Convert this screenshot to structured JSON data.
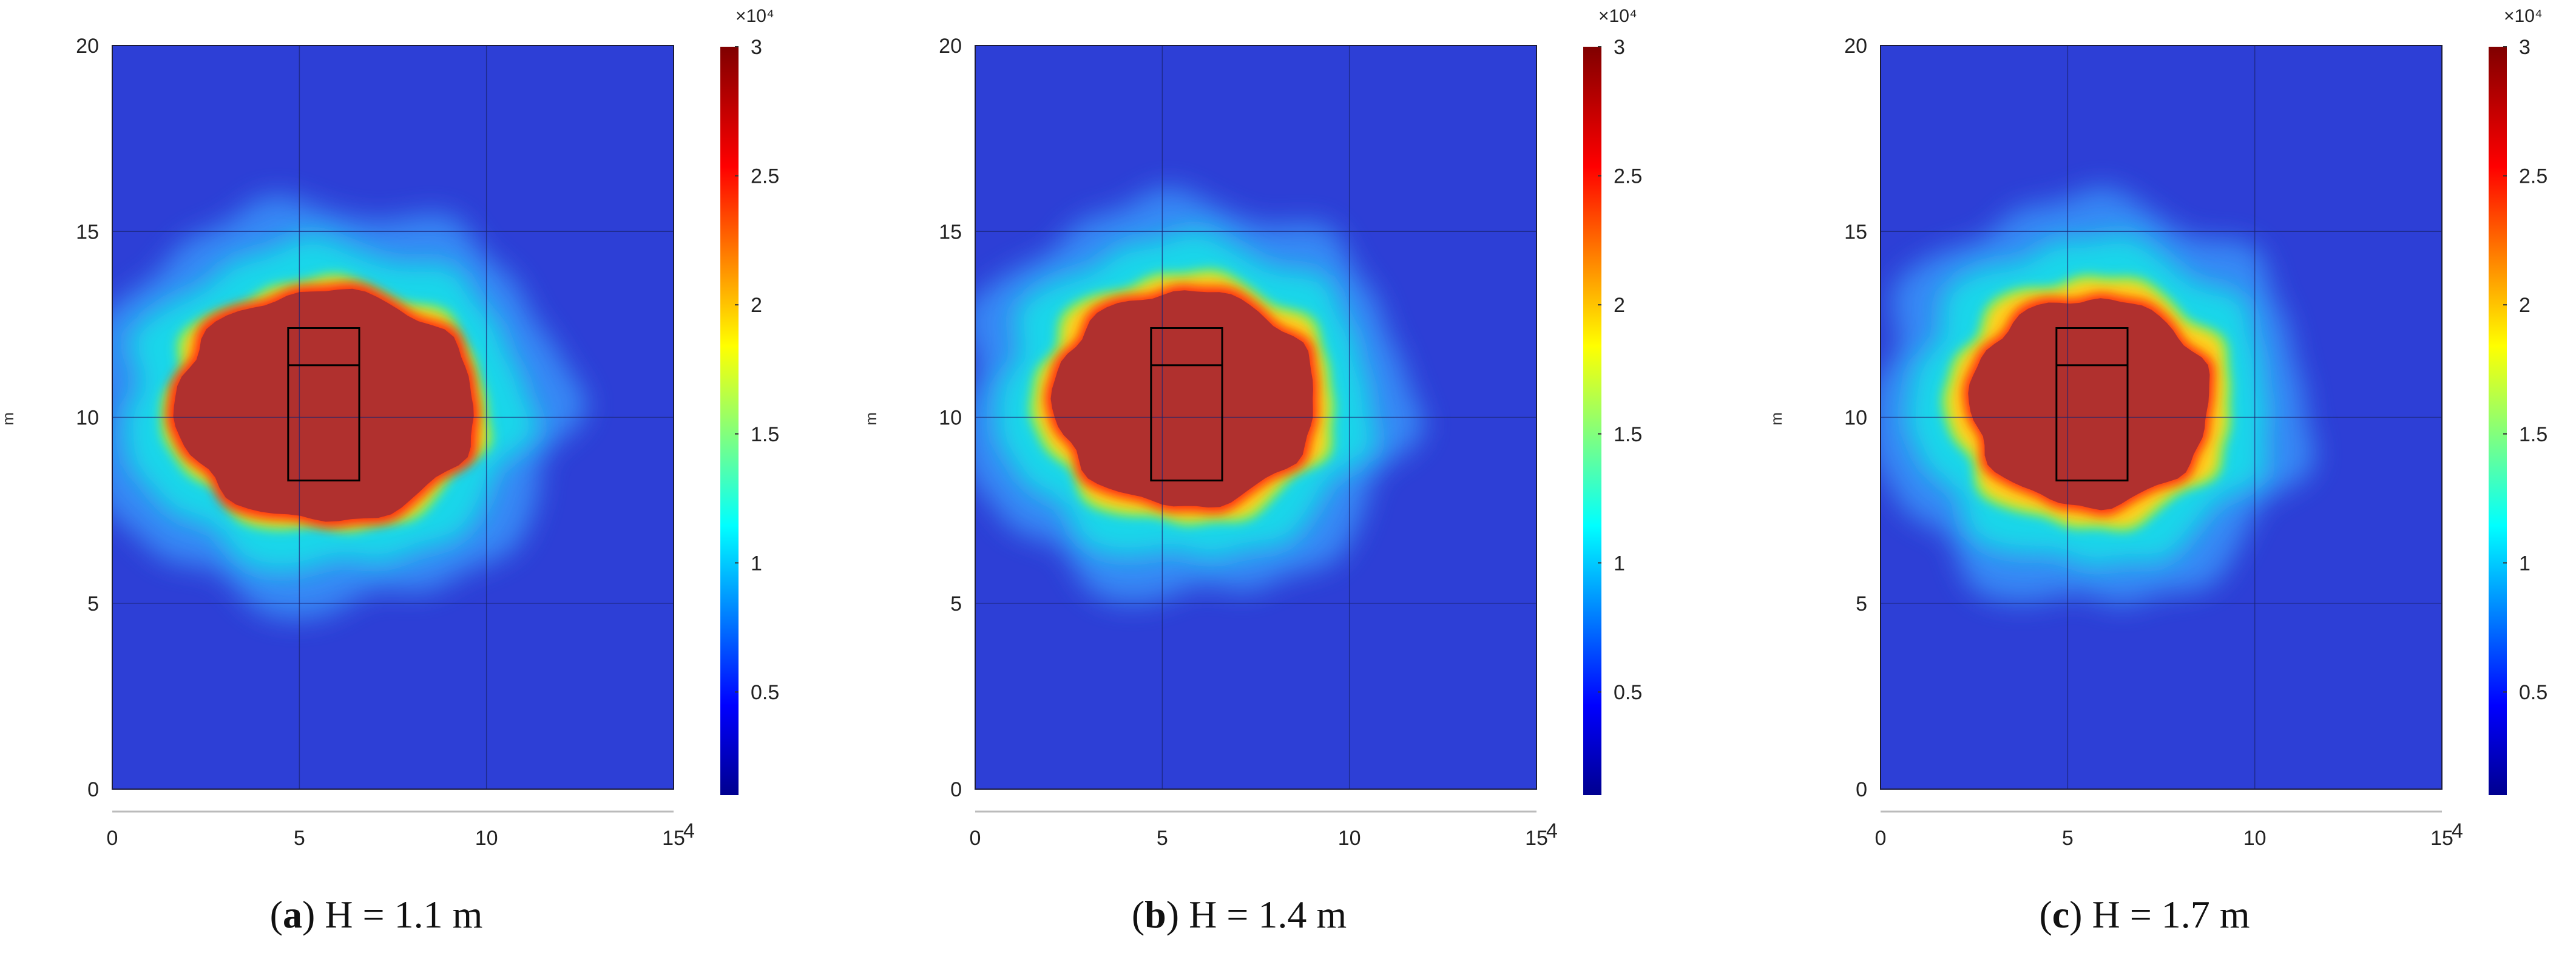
{
  "chart_data": [
    {
      "type": "heatmap",
      "panel": "a",
      "caption_letter": "a",
      "caption_text": ") H = 1.1 m",
      "ylabel": "m",
      "x_ticks": [
        "0",
        "5",
        "10",
        "15"
      ],
      "x_exponent": "4",
      "y_ticks": [
        "0",
        "5",
        "10",
        "15",
        "20"
      ],
      "xlim": [
        0,
        15
      ],
      "ylim": [
        0,
        20
      ],
      "grid": true,
      "colorbar": {
        "exponent_label": "×10⁴",
        "ticks": [
          "0.5",
          "1",
          "1.5",
          "2",
          "2.5",
          "3"
        ],
        "tick_values": [
          0.5,
          1,
          1.5,
          2,
          2.5,
          3
        ],
        "range": [
          0.1,
          3
        ]
      },
      "background_value": 0.2,
      "saturated_region": {
        "center": [
          5.7,
          10.3
        ],
        "radius_x": 4.0,
        "radius_y": 3.1,
        "value": 3,
        "outline_radii": [
          4.3,
          5.4,
          6.5
        ]
      },
      "outlines": [
        {
          "x0": 4.7,
          "y0": 8.3,
          "x1": 6.6,
          "y1": 12.4
        },
        {
          "x0": 4.7,
          "y0": 11.4,
          "x1": 6.6,
          "y1": 11.4
        }
      ]
    },
    {
      "type": "heatmap",
      "panel": "b",
      "caption_letter": "b",
      "caption_text": ") H = 1.4 m",
      "ylabel": "m",
      "x_ticks": [
        "0",
        "5",
        "10",
        "15"
      ],
      "x_exponent": "4",
      "y_ticks": [
        "0",
        "5",
        "10",
        "15",
        "20"
      ],
      "xlim": [
        0,
        15
      ],
      "ylim": [
        0,
        20
      ],
      "grid": true,
      "colorbar": {
        "exponent_label": "×10⁴",
        "ticks": [
          "0.5",
          "1",
          "1.5",
          "2",
          "2.5",
          "3"
        ],
        "tick_values": [
          0.5,
          1,
          1.5,
          2,
          2.5,
          3
        ],
        "range": [
          0.1,
          3
        ]
      },
      "background_value": 0.2,
      "saturated_region": {
        "center": [
          5.6,
          10.5
        ],
        "radius_x": 3.5,
        "radius_y": 2.9,
        "value": 3,
        "outline_radii": [
          4.0,
          5.0,
          6.0
        ]
      },
      "outlines": [
        {
          "x0": 4.7,
          "y0": 8.3,
          "x1": 6.6,
          "y1": 12.4
        },
        {
          "x0": 4.7,
          "y0": 11.4,
          "x1": 6.6,
          "y1": 11.4
        }
      ]
    },
    {
      "type": "heatmap",
      "panel": "c",
      "caption_letter": "c",
      "caption_text": ") H = 1.7 m",
      "ylabel": "m",
      "x_ticks": [
        "0",
        "5",
        "10",
        "15"
      ],
      "x_exponent": "4",
      "y_ticks": [
        "0",
        "5",
        "10",
        "15",
        "20"
      ],
      "xlim": [
        0,
        15
      ],
      "ylim": [
        0,
        20
      ],
      "grid": true,
      "colorbar": {
        "exponent_label": "×10⁴",
        "ticks": [
          "0.5",
          "1",
          "1.5",
          "2",
          "2.5",
          "3"
        ],
        "tick_values": [
          0.5,
          1,
          1.5,
          2,
          2.5,
          3
        ],
        "range": [
          0.1,
          3
        ]
      },
      "background_value": 0.2,
      "saturated_region": {
        "center": [
          5.6,
          10.4
        ],
        "radius_x": 3.2,
        "radius_y": 2.8,
        "value": 3,
        "outline_radii": [
          3.8,
          4.8,
          5.8
        ]
      },
      "outlines": [
        {
          "x0": 4.7,
          "y0": 8.3,
          "x1": 6.6,
          "y1": 12.4
        },
        {
          "x0": 4.7,
          "y0": 11.4,
          "x1": 6.6,
          "y1": 11.4
        }
      ]
    }
  ],
  "colors": {
    "background": "#2d3fd6",
    "saturated": "#b0302e",
    "grid": "#1a2470",
    "outline": "#000000",
    "colormap": [
      "#00008f",
      "#0000ff",
      "#00ffff",
      "#ffff00",
      "#ff0000",
      "#800000"
    ]
  }
}
